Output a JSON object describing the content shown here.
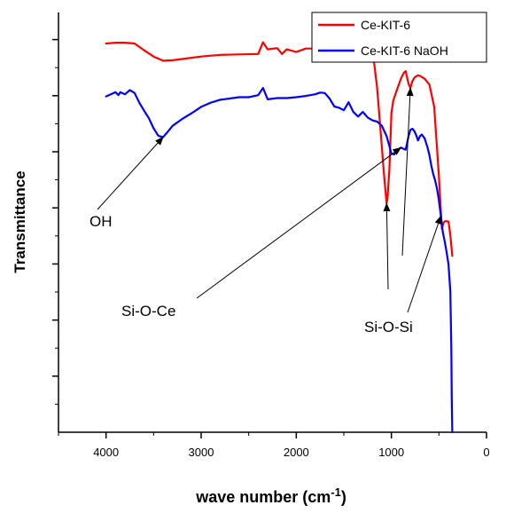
{
  "chart_data": {
    "type": "line",
    "xlabel": "wave number (cm",
    "xlabel_sup": "-1",
    "xlabel_close": ")",
    "ylabel": "Transmittance",
    "xlim": [
      4500,
      0
    ],
    "ylim": [
      0,
      100
    ],
    "x_reversed": true,
    "x_ticks": [
      4000,
      3000,
      2000,
      1000,
      0
    ],
    "x_tick_labels": [
      "4000",
      "3000",
      "2000",
      "1000",
      "0"
    ],
    "y_tick_labels_shown": false,
    "grid": false,
    "legend_position": "top-right",
    "series": [
      {
        "name": "Ce-KIT-6",
        "color": "#ff0000",
        "x": [
          4000,
          3900,
          3800,
          3700,
          3600,
          3500,
          3400,
          3300,
          3200,
          3000,
          2800,
          2600,
          2400,
          2350,
          2300,
          2200,
          2150,
          2100,
          2000,
          1900,
          1800,
          1700,
          1600,
          1500,
          1400,
          1300,
          1250,
          1200,
          1150,
          1100,
          1080,
          1060,
          1050,
          1040,
          1020,
          1000,
          980,
          950,
          900,
          870,
          850,
          820,
          800,
          780,
          760,
          740,
          720,
          700,
          650,
          600,
          550,
          500,
          470,
          450,
          430,
          400,
          380,
          360
        ],
        "y": [
          92.6,
          92.8,
          92.8,
          92.6,
          91.0,
          89.5,
          88.5,
          88.6,
          88.9,
          89.5,
          89.9,
          90.0,
          90.1,
          92.9,
          91.2,
          91.5,
          90.1,
          91.2,
          90.6,
          91.4,
          91.4,
          92.4,
          91.5,
          93.2,
          92.6,
          92.7,
          92.4,
          91.5,
          82.0,
          68.0,
          62.0,
          57.0,
          54.5,
          56.0,
          63.0,
          76.0,
          79.0,
          81.0,
          84.2,
          85.6,
          86.0,
          83.0,
          82.0,
          83.6,
          84.4,
          84.8,
          85.0,
          84.9,
          84.2,
          82.8,
          77.5,
          61.0,
          48.5,
          50.0,
          50.3,
          50.2,
          47.0,
          42.0
        ]
      },
      {
        "name": "Ce-KIT-6 NaOH",
        "color": "#0000ff",
        "x": [
          4000,
          3950,
          3900,
          3870,
          3850,
          3800,
          3750,
          3700,
          3650,
          3600,
          3550,
          3500,
          3450,
          3400,
          3350,
          3300,
          3200,
          3100,
          3000,
          2900,
          2800,
          2700,
          2600,
          2500,
          2400,
          2350,
          2300,
          2200,
          2100,
          2000,
          1900,
          1800,
          1750,
          1700,
          1650,
          1600,
          1550,
          1500,
          1450,
          1400,
          1350,
          1300,
          1250,
          1200,
          1150,
          1100,
          1050,
          1000,
          970,
          950,
          900,
          870,
          850,
          820,
          800,
          780,
          760,
          740,
          720,
          700,
          680,
          650,
          620,
          600,
          580,
          560,
          540,
          520,
          500,
          480,
          460,
          440,
          420,
          400,
          380,
          370,
          365,
          360
        ],
        "y": [
          80.0,
          80.5,
          81.0,
          80.3,
          81.0,
          80.5,
          81.5,
          80.8,
          78.5,
          76.6,
          74.8,
          72.4,
          70.6,
          70.3,
          71.6,
          73.0,
          74.6,
          76.0,
          77.5,
          78.5,
          79.2,
          79.5,
          79.8,
          79.8,
          80.3,
          82.0,
          79.3,
          79.6,
          79.6,
          79.8,
          80.1,
          80.5,
          80.9,
          80.8,
          79.5,
          77.6,
          77.3,
          76.7,
          78.6,
          76.3,
          75.2,
          76.3,
          75.0,
          74.3,
          74.0,
          73.0,
          70.5,
          66.4,
          66.2,
          67.0,
          67.8,
          67.5,
          67.3,
          70.5,
          72.0,
          72.3,
          71.8,
          70.8,
          69.5,
          70.5,
          70.9,
          70.0,
          67.8,
          66.0,
          63.5,
          61.5,
          60.0,
          58.0,
          55.2,
          51.5,
          47.8,
          45.5,
          43.0,
          40.0,
          33.5,
          20.0,
          8.0,
          0.0
        ]
      }
    ],
    "annotations": [
      {
        "text": "OH",
        "arrow_to": [
          3400,
          70.3
        ]
      },
      {
        "text": "Si-O-Ce",
        "arrow_to": [
          900,
          67.8
        ]
      },
      {
        "text": "Si-O-Si",
        "arrows_to": [
          [
            1050,
            54.5
          ],
          [
            800,
            82.0
          ],
          [
            480,
            51.5
          ]
        ]
      }
    ]
  }
}
